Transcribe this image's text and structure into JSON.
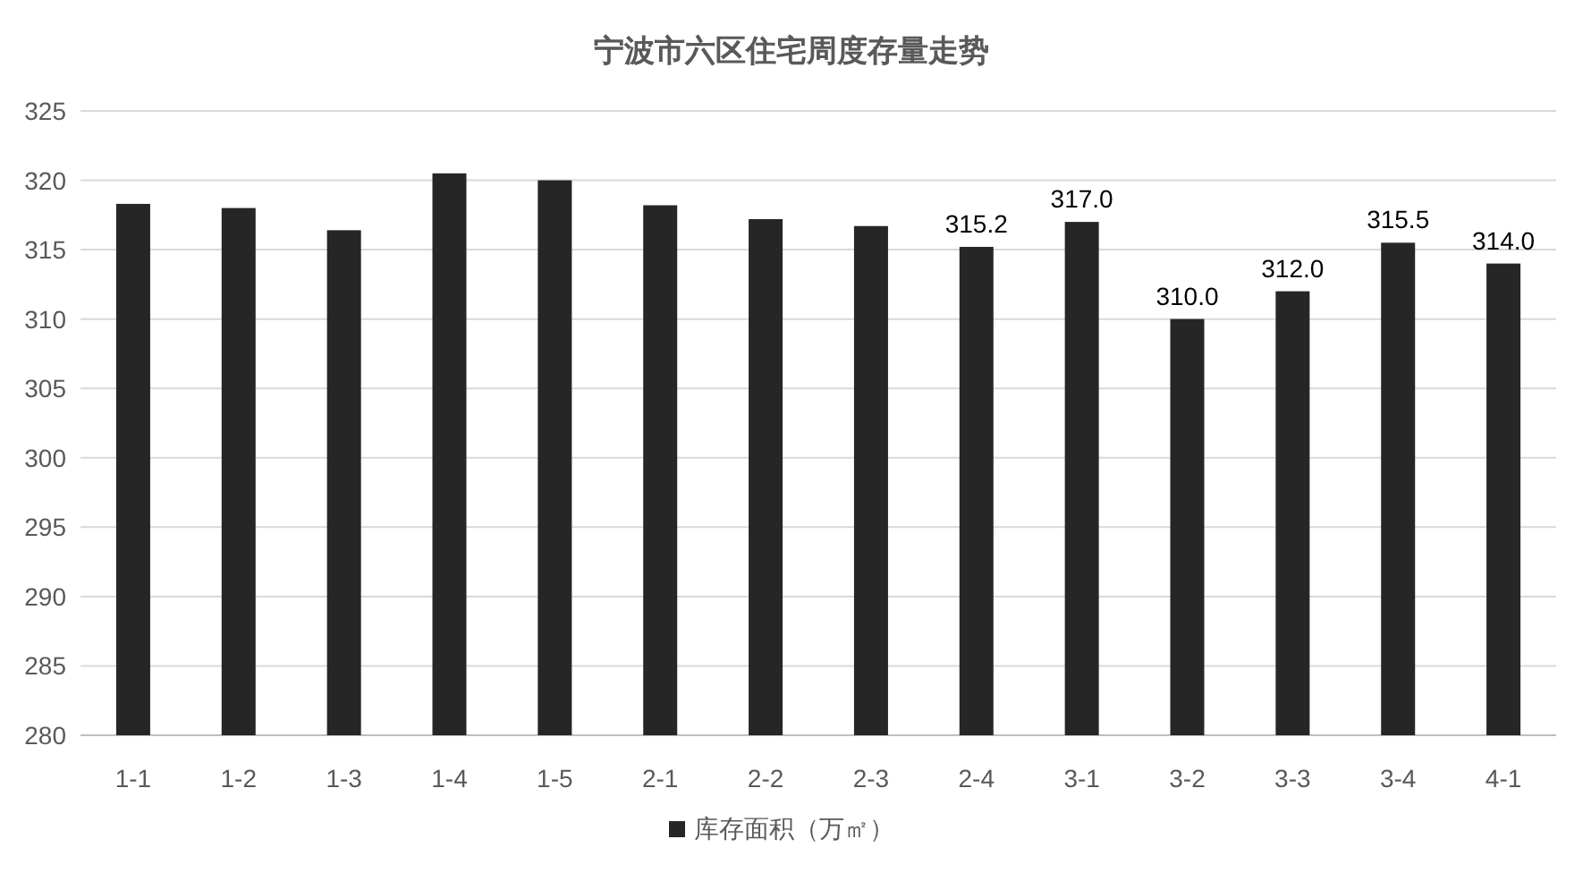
{
  "chart_data": {
    "type": "bar",
    "title": "宁波市六区住宅周度存量走势",
    "categories": [
      "1-1",
      "1-2",
      "1-3",
      "1-4",
      "1-5",
      "2-1",
      "2-2",
      "2-3",
      "2-4",
      "3-1",
      "3-2",
      "3-3",
      "3-4",
      "4-1"
    ],
    "series": [
      {
        "name": "库存面积（万㎡）",
        "color": "#262626",
        "values": [
          318.3,
          318.0,
          316.4,
          320.5,
          320.0,
          318.2,
          317.2,
          316.7,
          315.2,
          317.0,
          310.0,
          312.0,
          315.5,
          314.0
        ],
        "value_labels": [
          null,
          null,
          null,
          null,
          null,
          null,
          null,
          null,
          "315.2",
          "317.0",
          "310.0",
          "312.0",
          "315.5",
          "314.0"
        ]
      }
    ],
    "ylim": [
      280,
      325
    ],
    "yticks": [
      280,
      285,
      290,
      295,
      300,
      305,
      310,
      315,
      320,
      325
    ],
    "grid": "y",
    "legend": "bottom"
  }
}
